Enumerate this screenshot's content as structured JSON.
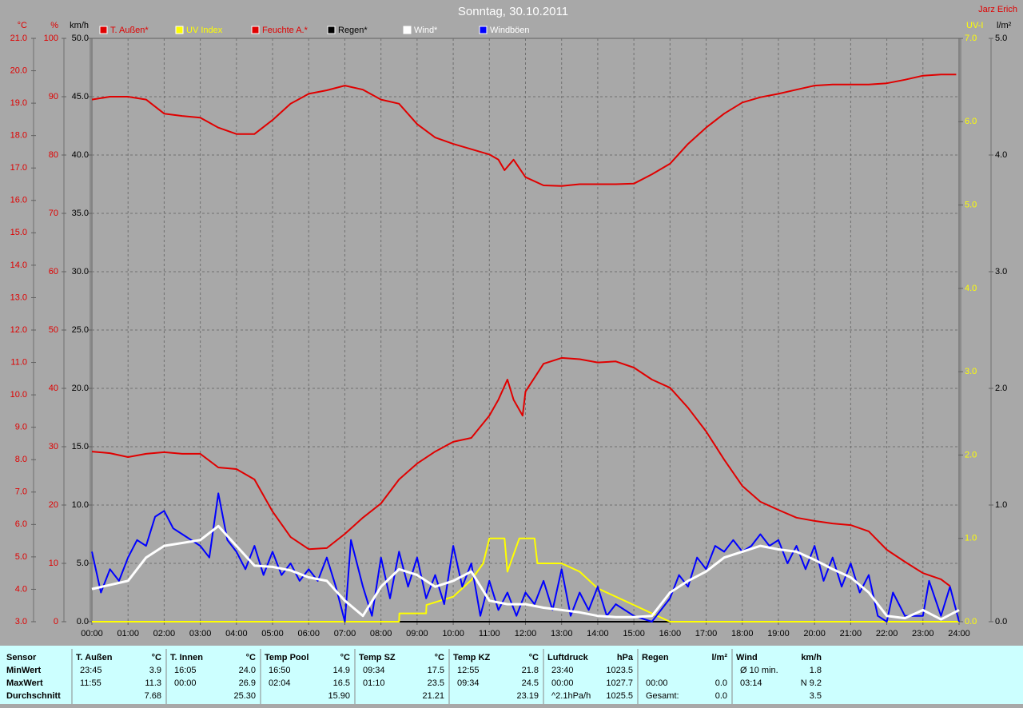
{
  "chart_data": {
    "type": "line",
    "title": "Sonntag, 30.10.2011",
    "author": "Jarz Erich",
    "xlim": [
      0,
      24
    ],
    "xticks": [
      {
        "value": 0,
        "label": "00:00"
      },
      {
        "value": 1,
        "label": "01:00"
      },
      {
        "value": 2,
        "label": "02:00"
      },
      {
        "value": 3,
        "label": "03:00"
      },
      {
        "value": 4,
        "label": "04:00"
      },
      {
        "value": 5,
        "label": "05:00"
      },
      {
        "value": 6,
        "label": "06:00"
      },
      {
        "value": 7,
        "label": "07:00"
      },
      {
        "value": 8,
        "label": "08:00"
      },
      {
        "value": 9,
        "label": "09:00"
      },
      {
        "value": 10,
        "label": "10:00"
      },
      {
        "value": 11,
        "label": "11:00"
      },
      {
        "value": 12,
        "label": "12:00"
      },
      {
        "value": 13,
        "label": "13:00"
      },
      {
        "value": 14,
        "label": "14:00"
      },
      {
        "value": 15,
        "label": "15:00"
      },
      {
        "value": 16,
        "label": "16:00"
      },
      {
        "value": 17,
        "label": "17:00"
      },
      {
        "value": 18,
        "label": "18:00"
      },
      {
        "value": 19,
        "label": "19:00"
      },
      {
        "value": 20,
        "label": "20:00"
      },
      {
        "value": 21,
        "label": "21:00"
      },
      {
        "value": 22,
        "label": "22:00"
      },
      {
        "value": 23,
        "label": "23:00"
      },
      {
        "value": 24,
        "label": "24:00"
      }
    ],
    "grid": true,
    "axes": [
      {
        "label": "°C",
        "color": "#e00000",
        "lim": [
          3,
          21
        ],
        "ticks": [
          {
            "value": 3,
            "label": "3.0"
          },
          {
            "value": 4,
            "label": "4.0"
          },
          {
            "value": 5,
            "label": "5.0"
          },
          {
            "value": 6,
            "label": "6.0"
          },
          {
            "value": 7,
            "label": "7.0"
          },
          {
            "value": 8,
            "label": "8.0"
          },
          {
            "value": 9,
            "label": "9.0"
          },
          {
            "value": 10,
            "label": "10.0"
          },
          {
            "value": 11,
            "label": "11.0"
          },
          {
            "value": 12,
            "label": "12.0"
          },
          {
            "value": 13,
            "label": "13.0"
          },
          {
            "value": 14,
            "label": "14.0"
          },
          {
            "value": 15,
            "label": "15.0"
          },
          {
            "value": 16,
            "label": "16.0"
          },
          {
            "value": 17,
            "label": "17.0"
          },
          {
            "value": 18,
            "label": "18.0"
          },
          {
            "value": 19,
            "label": "19.0"
          },
          {
            "value": 20,
            "label": "20.0"
          },
          {
            "value": 21,
            "label": "21.0"
          }
        ]
      },
      {
        "label": "%",
        "color": "#e00000",
        "lim": [
          0,
          100
        ],
        "ticks": [
          0,
          10,
          20,
          30,
          40,
          50,
          60,
          70,
          80,
          90,
          100
        ]
      },
      {
        "label": "km/h",
        "color": "#000000",
        "lim": [
          0,
          50
        ],
        "ticks": [
          {
            "value": 0,
            "label": "0.0"
          },
          {
            "value": 5,
            "label": "5.0"
          },
          {
            "value": 10,
            "label": "10.0"
          },
          {
            "value": 15,
            "label": "15.0"
          },
          {
            "value": 20,
            "label": "20.0"
          },
          {
            "value": 25,
            "label": "25.0"
          },
          {
            "value": 30,
            "label": "30.0"
          },
          {
            "value": 35,
            "label": "35.0"
          },
          {
            "value": 40,
            "label": "40.0"
          },
          {
            "value": 45,
            "label": "45.0"
          },
          {
            "value": 50,
            "label": "50.0"
          }
        ]
      },
      {
        "label": "UV-I",
        "color": "#ffff00",
        "lim": [
          0,
          7
        ],
        "ticks": [
          {
            "value": 0,
            "label": "0.0"
          },
          {
            "value": 1,
            "label": "1.0"
          },
          {
            "value": 2,
            "label": "2.0"
          },
          {
            "value": 3,
            "label": "3.0"
          },
          {
            "value": 4,
            "label": "4.0"
          },
          {
            "value": 5,
            "label": "5.0"
          },
          {
            "value": 6,
            "label": "6.0"
          },
          {
            "value": 7,
            "label": "7.0"
          }
        ]
      },
      {
        "label": "l/m²",
        "color": "#000000",
        "lim": [
          0,
          5
        ],
        "ticks": [
          {
            "value": 0,
            "label": "0.0"
          },
          {
            "value": 1,
            "label": "1.0"
          },
          {
            "value": 2,
            "label": "2.0"
          },
          {
            "value": 3,
            "label": "3.0"
          },
          {
            "value": 4,
            "label": "4.0"
          },
          {
            "value": 5,
            "label": "5.0"
          }
        ]
      }
    ],
    "series": [
      {
        "name": "T. Außen*",
        "color": "#e00000",
        "axis": 0,
        "x": [
          0,
          0.5,
          1,
          1.5,
          2,
          2.5,
          3,
          3.5,
          4,
          4.5,
          5,
          5.5,
          6,
          6.5,
          7,
          7.5,
          8,
          8.5,
          9,
          9.5,
          10,
          10.5,
          11,
          11.25,
          11.5,
          11.67,
          11.92,
          12,
          12.5,
          13,
          13.5,
          14,
          14.5,
          15,
          15.5,
          16,
          16.5,
          17,
          17.5,
          18,
          18.5,
          19,
          19.5,
          20,
          20.5,
          21,
          21.5,
          22,
          22.5,
          23,
          23.5,
          23.75
        ],
        "values": [
          8.25,
          8.2,
          8.08,
          8.18,
          8.23,
          8.18,
          8.18,
          7.76,
          7.71,
          7.39,
          6.4,
          5.61,
          5.24,
          5.27,
          5.71,
          6.21,
          6.65,
          7.39,
          7.88,
          8.25,
          8.55,
          8.67,
          9.36,
          9.85,
          10.47,
          9.85,
          9.36,
          10.1,
          10.96,
          11.14,
          11.1,
          11.0,
          11.03,
          10.84,
          10.47,
          10.22,
          9.6,
          8.87,
          8.0,
          7.19,
          6.7,
          6.45,
          6.21,
          6.11,
          6.03,
          5.98,
          5.79,
          5.22,
          4.85,
          4.5,
          4.31,
          4.1
        ]
      },
      {
        "name": "UV Index",
        "color": "#ffff00",
        "axis": 3,
        "x": [
          0,
          8.5,
          8.51,
          9.25,
          9.26,
          10,
          10.5,
          10.83,
          11,
          11.42,
          11.5,
          11.83,
          12.25,
          12.33,
          13,
          13.5,
          14,
          14.5,
          15,
          15.5,
          16,
          24
        ],
        "values": [
          0,
          0,
          0.1,
          0.1,
          0.2,
          0.3,
          0.5,
          0.7,
          1.0,
          1.0,
          0.6,
          1.0,
          1.0,
          0.7,
          0.7,
          0.6,
          0.4,
          0.3,
          0.2,
          0.1,
          0,
          0
        ]
      },
      {
        "name": "Feuchte A.*",
        "color": "#e00000",
        "axis": 1,
        "x": [
          0,
          0.5,
          1,
          1.5,
          2,
          2.5,
          3,
          3.5,
          4,
          4.5,
          5,
          5.5,
          6,
          6.5,
          7,
          7.5,
          8,
          8.5,
          9,
          9.5,
          10,
          10.5,
          11,
          11.25,
          11.42,
          11.67,
          12,
          12.5,
          13,
          13.5,
          14,
          14.5,
          15,
          15.5,
          16,
          16.5,
          17,
          17.5,
          18,
          18.5,
          19,
          19.5,
          20,
          20.5,
          21,
          21.5,
          22,
          22.5,
          23,
          23.5,
          23.92
        ],
        "values": [
          89.5,
          90,
          90,
          89.5,
          87.1,
          86.7,
          86.4,
          84.7,
          83.6,
          83.6,
          86,
          88.8,
          90.5,
          91.1,
          91.9,
          91.2,
          89.5,
          88.8,
          85.3,
          83.0,
          81.9,
          81,
          80.1,
          79.2,
          77.4,
          79.2,
          76.2,
          74.8,
          74.7,
          75,
          75,
          75,
          75.1,
          76.7,
          78.5,
          81.9,
          84.7,
          87.1,
          89,
          89.9,
          90.5,
          91.2,
          91.9,
          92.1,
          92.1,
          92.1,
          92.3,
          92.9,
          93.6,
          93.8,
          93.8
        ]
      },
      {
        "name": "Regen*",
        "color": "#000000",
        "axis": 4,
        "x": [
          0,
          24
        ],
        "values": [
          0,
          0
        ]
      },
      {
        "name": "Wind*",
        "color": "#ffffff",
        "axis": 2,
        "x": [
          0,
          1,
          1.5,
          2,
          3,
          3.5,
          4,
          4.5,
          5,
          5.5,
          6,
          6.5,
          7,
          7.5,
          8,
          8.5,
          9,
          9.5,
          10,
          10.5,
          11,
          11.5,
          12,
          12.5,
          13,
          13.5,
          14,
          14.5,
          15,
          15.5,
          16,
          16.5,
          17,
          17.5,
          18,
          18.5,
          19,
          19.5,
          20,
          20.5,
          21,
          21.5,
          22,
          22.5,
          23,
          23.5,
          24
        ],
        "values": [
          2.8,
          3.5,
          5.5,
          6.5,
          7.0,
          8.2,
          6.5,
          4.8,
          4.7,
          4.4,
          3.8,
          3.5,
          1.8,
          0.5,
          3.0,
          4.5,
          4.0,
          3.0,
          3.5,
          4.3,
          1.8,
          1.5,
          1.5,
          1.2,
          1.0,
          0.8,
          0.5,
          0.4,
          0.4,
          0.5,
          2.5,
          3.5,
          4.3,
          5.5,
          6.0,
          6.5,
          6.2,
          6.0,
          5.3,
          4.5,
          3.8,
          2.5,
          0.5,
          0.3,
          1.0,
          0.2,
          1.0
        ]
      },
      {
        "name": "Windböen",
        "color": "#0000ff",
        "axis": 2,
        "x": [
          0,
          0.25,
          0.5,
          0.75,
          1,
          1.25,
          1.5,
          1.75,
          2,
          2.25,
          2.5,
          3,
          3.25,
          3.5,
          3.75,
          4,
          4.25,
          4.5,
          4.75,
          5,
          5.25,
          5.5,
          5.75,
          6,
          6.25,
          6.5,
          6.75,
          7,
          7.17,
          7.5,
          7.75,
          8,
          8.25,
          8.5,
          8.75,
          9,
          9.25,
          9.5,
          9.75,
          10,
          10.25,
          10.5,
          10.75,
          11,
          11.25,
          11.5,
          11.75,
          12,
          12.25,
          12.5,
          12.75,
          13,
          13.25,
          13.5,
          13.75,
          14,
          14.25,
          14.5,
          15,
          15.5,
          16,
          16.25,
          16.5,
          16.75,
          17,
          17.25,
          17.5,
          17.75,
          18,
          18.25,
          18.5,
          18.75,
          19,
          19.25,
          19.5,
          19.75,
          20,
          20.25,
          20.5,
          20.75,
          21,
          21.25,
          21.5,
          21.75,
          22,
          22.17,
          22.5,
          23,
          23.17,
          23.5,
          23.75,
          24
        ],
        "values": [
          6.0,
          2.5,
          4.5,
          3.5,
          5.5,
          7.0,
          6.5,
          9.0,
          9.5,
          8.0,
          7.5,
          6.5,
          5.5,
          11.0,
          7.0,
          6.0,
          4.5,
          6.5,
          4.0,
          6.0,
          4.0,
          5.0,
          3.5,
          4.5,
          3.5,
          5.5,
          3.0,
          0.0,
          7.0,
          3.0,
          0.5,
          5.5,
          2.0,
          6.0,
          3.0,
          5.5,
          2.0,
          4.0,
          1.5,
          6.5,
          3.0,
          5.0,
          0.5,
          3.5,
          1.0,
          2.5,
          0.5,
          2.5,
          1.5,
          3.5,
          1.0,
          4.5,
          0.5,
          2.5,
          1.0,
          3.0,
          0.5,
          1.5,
          0.5,
          0.0,
          2.0,
          4.0,
          3.0,
          5.5,
          4.5,
          6.5,
          6.0,
          7.0,
          6.0,
          6.5,
          7.5,
          6.5,
          7.0,
          5.0,
          6.5,
          4.5,
          6.5,
          3.5,
          5.5,
          3.0,
          5.0,
          2.5,
          4.0,
          0.5,
          0.0,
          2.5,
          0.5,
          0.5,
          3.5,
          0.5,
          3.0,
          0.0
        ]
      }
    ]
  },
  "stats_table": {
    "row_labels": [
      "Sensor",
      "MinWert",
      "MaxWert",
      "Durchschnitt"
    ],
    "sections": [
      {
        "name": "T. Außen",
        "unit": "°C",
        "rows": [
          {
            "time": "23:45",
            "value": "3.9"
          },
          {
            "time": "11:55",
            "value": "11.3"
          },
          {
            "value": "7.68"
          }
        ]
      },
      {
        "name": "T. Innen",
        "unit": "°C",
        "rows": [
          {
            "time": "16:05",
            "value": "24.0"
          },
          {
            "time": "00:00",
            "value": "26.9"
          },
          {
            "value": "25.30"
          }
        ]
      },
      {
        "name": "Temp Pool",
        "unit": "°C",
        "rows": [
          {
            "time": "16:50",
            "value": "14.9"
          },
          {
            "time": "02:04",
            "value": "16.5"
          },
          {
            "value": "15.90"
          }
        ]
      },
      {
        "name": "Temp SZ",
        "unit": "°C",
        "rows": [
          {
            "time": "09:34",
            "value": "17.5"
          },
          {
            "time": "01:10",
            "value": "23.5"
          },
          {
            "value": "21.21"
          }
        ]
      },
      {
        "name": "Temp KZ",
        "unit": "°C",
        "rows": [
          {
            "time": "12:55",
            "value": "21.8"
          },
          {
            "time": "09:34",
            "value": "24.5"
          },
          {
            "value": "23.19"
          }
        ]
      },
      {
        "name": "Luftdruck",
        "unit": "hPa",
        "rows": [
          {
            "time": "23:40",
            "value": "1023.5"
          },
          {
            "time": "00:00",
            "value": "1027.7"
          },
          {
            "time": "^2.1hPa/h",
            "value": "1025.5"
          }
        ]
      },
      {
        "name": "Regen",
        "unit": "l/m²",
        "rows": [
          null,
          {
            "time": "00:00",
            "value": "0.0"
          },
          {
            "time": "Gesamt:",
            "value": "0.0"
          }
        ]
      },
      {
        "name": "Wind",
        "unit": "km/h",
        "rows": [
          {
            "time": "Ø 10 min.",
            "value": "1.8"
          },
          {
            "time": "03:14",
            "value": "N 9.2"
          },
          {
            "value": "3.5"
          }
        ]
      }
    ]
  }
}
